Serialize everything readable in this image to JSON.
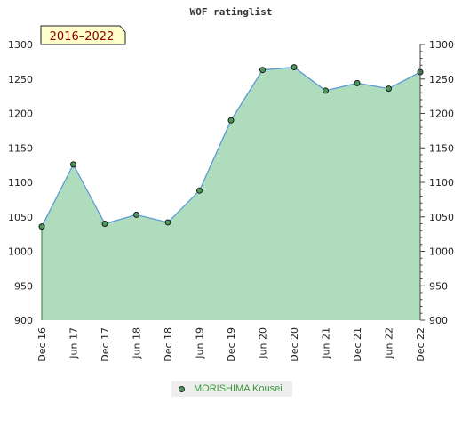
{
  "title": "WOF ratinglist",
  "badge": "2016–2022",
  "chart_data": {
    "type": "area",
    "title": "WOF ratinglist",
    "ylim": [
      900,
      1300
    ],
    "y_ticks": [
      900,
      950,
      1000,
      1050,
      1100,
      1150,
      1200,
      1250,
      1300
    ],
    "x_ticks": [
      "Dec 16",
      "Jun 17",
      "Dec 17",
      "Jun 18",
      "Dec 18",
      "Jun 19",
      "Dec 19",
      "Jun 20",
      "Dec 20",
      "Jun 21",
      "Dec 21",
      "Jun 22",
      "Dec 22"
    ],
    "series": [
      {
        "name": "MORISHIMA Kousei",
        "values": [
          1036,
          1126,
          1040,
          1053,
          1042,
          1088,
          1190,
          1263,
          1267,
          1233,
          1244,
          1236,
          1260
        ]
      }
    ],
    "legend_position": "bottom",
    "colors": {
      "line": "#5b9bd5",
      "area": "#6dbf85",
      "marker": "#4a9a5a",
      "badge_bg": "#ffffcc",
      "legend_text": "#3a9a3a"
    }
  }
}
